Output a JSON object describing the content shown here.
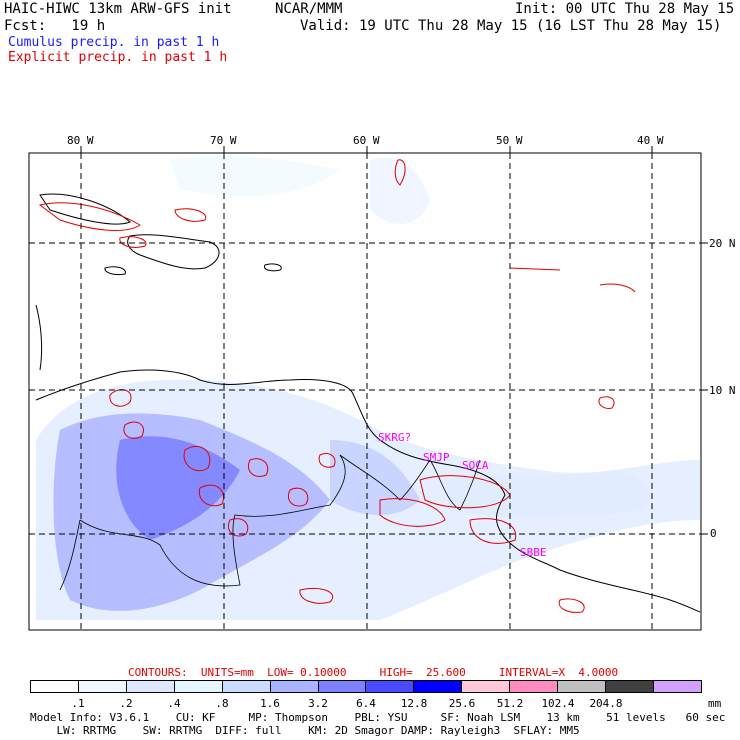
{
  "header": {
    "model_title": "HAIC-HIWC 13km ARW-GFS init",
    "org": "NCAR/MMM",
    "init": "Init: 00 UTC Thu 28 May 15",
    "fcst": "Fcst:   19 h",
    "valid": "Valid: 19 UTC Thu 28 May 15 (16 LST Thu 28 May 15)",
    "cumulus_label": "Cumulus precip. in past 1 h",
    "explicit_label": "Explicit precip. in past 1 h"
  },
  "colors": {
    "cumulus": "#1a1aff",
    "explicit": "#e00000",
    "contour_text": "#e00000",
    "station_text": "#ff00ff"
  },
  "axes": {
    "lon_labels": [
      "80 W",
      "70 W",
      "60 W",
      "50 W",
      "40 W"
    ],
    "lat_labels": [
      "20 N",
      "10 N",
      "0"
    ]
  },
  "stations": [
    "SKRG?",
    "SMJP",
    "SOCA",
    "SBBE"
  ],
  "contours": {
    "label": "CONTOURS:  UNITS=mm  LOW= 0.10000     HIGH=  25.600     INTERVAL=X  4.0000"
  },
  "colorbar": {
    "ticks": [
      ".1",
      ".2",
      ".4",
      ".8",
      "1.6",
      "3.2",
      "6.4",
      "12.8",
      "25.6",
      "51.2",
      "102.4",
      "204.8"
    ],
    "unit": "mm",
    "colors": [
      "#ffffff",
      "#f2f6ff",
      "#dde8ff",
      "#e6f6ff",
      "#c8dcff",
      "#a9b6ff",
      "#7c82ff",
      "#4a4aff",
      "#0000ff",
      "#ffc8d8",
      "#ff8cc0",
      "#c0c0c0",
      "#404040",
      "#d2a0ff"
    ]
  },
  "footer": {
    "line1": "Model Info: V3.6.1    CU: KF     MP: Thompson    PBL: YSU     SF: Noah LSM    13 km    51 levels   60 sec",
    "line2": "    LW: RRTMG    SW: RRTMG  DIFF: full    KM: 2D Smagor DAMP: Rayleigh3  SFLAY: MM5"
  }
}
